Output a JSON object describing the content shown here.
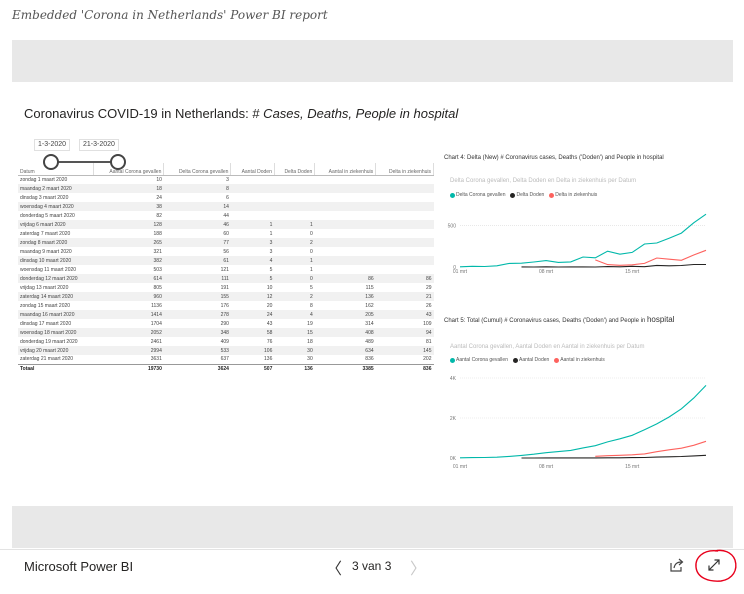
{
  "caption": "Embedded 'Corona in Netherlands' Power BI report",
  "report": {
    "title_main": "Coronavirus COVID-19 in Netherlands: #",
    "title_italic": " Cases, Deaths, People in hospital"
  },
  "slicer": {
    "start_date": "1-3-2020",
    "end_date": "21-3-2020"
  },
  "table": {
    "headers": [
      "Datum",
      "Aantal Corona gevallen",
      "Delta Corona gevallen",
      "Aantal Doden",
      "Delta Doden",
      "Aantal in ziekenhuis",
      "Delta in ziekenhuis"
    ],
    "rows": [
      [
        "zondag 1 maart 2020",
        "10",
        "3",
        "",
        "",
        "",
        ""
      ],
      [
        "maandag 2 maart 2020",
        "18",
        "8",
        "",
        "",
        "",
        ""
      ],
      [
        "dinsdag 3 maart 2020",
        "24",
        "6",
        "",
        "",
        "",
        ""
      ],
      [
        "woensdag 4 maart 2020",
        "38",
        "14",
        "",
        "",
        "",
        ""
      ],
      [
        "donderdag 5 maart 2020",
        "82",
        "44",
        "",
        "",
        "",
        ""
      ],
      [
        "vrijdag 6 maart 2020",
        "128",
        "46",
        "1",
        "1",
        "",
        ""
      ],
      [
        "zaterdag 7 maart 2020",
        "188",
        "60",
        "1",
        "0",
        "",
        ""
      ],
      [
        "zondag 8 maart 2020",
        "265",
        "77",
        "3",
        "2",
        "",
        ""
      ],
      [
        "maandag 9 maart 2020",
        "321",
        "56",
        "3",
        "0",
        "",
        ""
      ],
      [
        "dinsdag 10 maart 2020",
        "382",
        "61",
        "4",
        "1",
        "",
        ""
      ],
      [
        "woensdag 11 maart 2020",
        "503",
        "121",
        "5",
        "1",
        "",
        ""
      ],
      [
        "donderdag 12 maart 2020",
        "614",
        "111",
        "5",
        "0",
        "86",
        "86"
      ],
      [
        "vrijdag 13 maart 2020",
        "805",
        "191",
        "10",
        "5",
        "115",
        "29"
      ],
      [
        "zaterdag 14 maart 2020",
        "960",
        "155",
        "12",
        "2",
        "136",
        "21"
      ],
      [
        "zondag 15 maart 2020",
        "1136",
        "176",
        "20",
        "8",
        "162",
        "26"
      ],
      [
        "maandag 16 maart 2020",
        "1414",
        "278",
        "24",
        "4",
        "205",
        "43"
      ],
      [
        "dinsdag 17 maart 2020",
        "1704",
        "290",
        "43",
        "19",
        "314",
        "109"
      ],
      [
        "woensdag 18 maart 2020",
        "2052",
        "348",
        "58",
        "15",
        "408",
        "94"
      ],
      [
        "donderdag 19 maart 2020",
        "2461",
        "409",
        "76",
        "18",
        "489",
        "81"
      ],
      [
        "vrijdag 20 maart 2020",
        "2994",
        "533",
        "106",
        "30",
        "634",
        "145"
      ],
      [
        "zaterdag 21 maart 2020",
        "3631",
        "637",
        "136",
        "30",
        "836",
        "202"
      ]
    ],
    "total": [
      "Totaal",
      "19730",
      "3624",
      "507",
      "136",
      "3385",
      "836"
    ]
  },
  "chart_data": [
    {
      "type": "line",
      "title": "Chart 4: Delta (New) # Coronavirus cases, Deaths ('Doden') and People in hospital",
      "subtitle": "Delta Corona gevallen, Delta Doden en Delta in ziekenhuis per Datum",
      "x": [
        1,
        2,
        3,
        4,
        5,
        6,
        7,
        8,
        9,
        10,
        11,
        12,
        13,
        14,
        15,
        16,
        17,
        18,
        19,
        20,
        21
      ],
      "x_ticks": [
        "01 mrt",
        "08 mrt",
        "15 mrt"
      ],
      "x_tick_values": [
        1,
        8,
        15
      ],
      "y_ticks": [
        "0",
        "500"
      ],
      "y_tick_values": [
        0,
        500
      ],
      "ylim": [
        0,
        700
      ],
      "series": [
        {
          "name": "Delta Corona gevallen",
          "color": "#01b8aa",
          "values": [
            3,
            8,
            6,
            14,
            44,
            46,
            60,
            77,
            56,
            61,
            121,
            111,
            191,
            155,
            176,
            278,
            290,
            348,
            409,
            533,
            637
          ]
        },
        {
          "name": "Delta Doden",
          "color": "#252423",
          "values": [
            null,
            null,
            null,
            null,
            null,
            1,
            0,
            2,
            0,
            1,
            1,
            0,
            5,
            2,
            8,
            4,
            19,
            15,
            18,
            30,
            30
          ]
        },
        {
          "name": "Delta in ziekenhuis",
          "color": "#fd625e",
          "values": [
            null,
            null,
            null,
            null,
            null,
            null,
            null,
            null,
            null,
            null,
            null,
            86,
            29,
            21,
            26,
            43,
            109,
            94,
            81,
            145,
            202
          ]
        }
      ],
      "grid": true,
      "legend": "top-left"
    },
    {
      "type": "line",
      "title_small": "Chart 5: Total (Cumul) # Coronavirus cases, Deaths ('Doden') and People in",
      "title_large": "hospital",
      "subtitle": "Aantal Corona gevallen, Aantal Doden en Aantal in ziekenhuis per Datum",
      "x": [
        1,
        2,
        3,
        4,
        5,
        6,
        7,
        8,
        9,
        10,
        11,
        12,
        13,
        14,
        15,
        16,
        17,
        18,
        19,
        20,
        21
      ],
      "x_ticks": [
        "01 mrt",
        "08 mrt",
        "15 mrt"
      ],
      "x_tick_values": [
        1,
        8,
        15
      ],
      "y_ticks": [
        "0K",
        "2K",
        "4K"
      ],
      "y_tick_values": [
        0,
        2000,
        4000
      ],
      "ylim": [
        0,
        4000
      ],
      "series": [
        {
          "name": "Aantal Corona gevallen",
          "color": "#01b8aa",
          "values": [
            10,
            18,
            24,
            38,
            82,
            128,
            188,
            265,
            321,
            382,
            503,
            614,
            805,
            960,
            1136,
            1414,
            1704,
            2052,
            2461,
            2994,
            3631
          ]
        },
        {
          "name": "Aantal Doden",
          "color": "#252423",
          "values": [
            null,
            null,
            null,
            null,
            null,
            1,
            1,
            3,
            3,
            4,
            5,
            5,
            10,
            12,
            20,
            24,
            43,
            58,
            76,
            106,
            136
          ]
        },
        {
          "name": "Aantal in ziekenhuis",
          "color": "#fd625e",
          "values": [
            null,
            null,
            null,
            null,
            null,
            null,
            null,
            null,
            null,
            null,
            null,
            86,
            115,
            136,
            162,
            205,
            314,
            408,
            489,
            634,
            836
          ]
        }
      ],
      "grid": true,
      "legend": "top-left"
    }
  ],
  "footer": {
    "brand": "Microsoft Power BI",
    "prev_icon": "chevron-left-icon",
    "prev_glyph": "〈",
    "next_icon": "chevron-right-icon",
    "next_glyph": "〉",
    "page_indicator": "3 van 3",
    "share_icon": "share-icon",
    "fullscreen_icon": "fullscreen-icon"
  },
  "annotation_color": "#e8001c"
}
